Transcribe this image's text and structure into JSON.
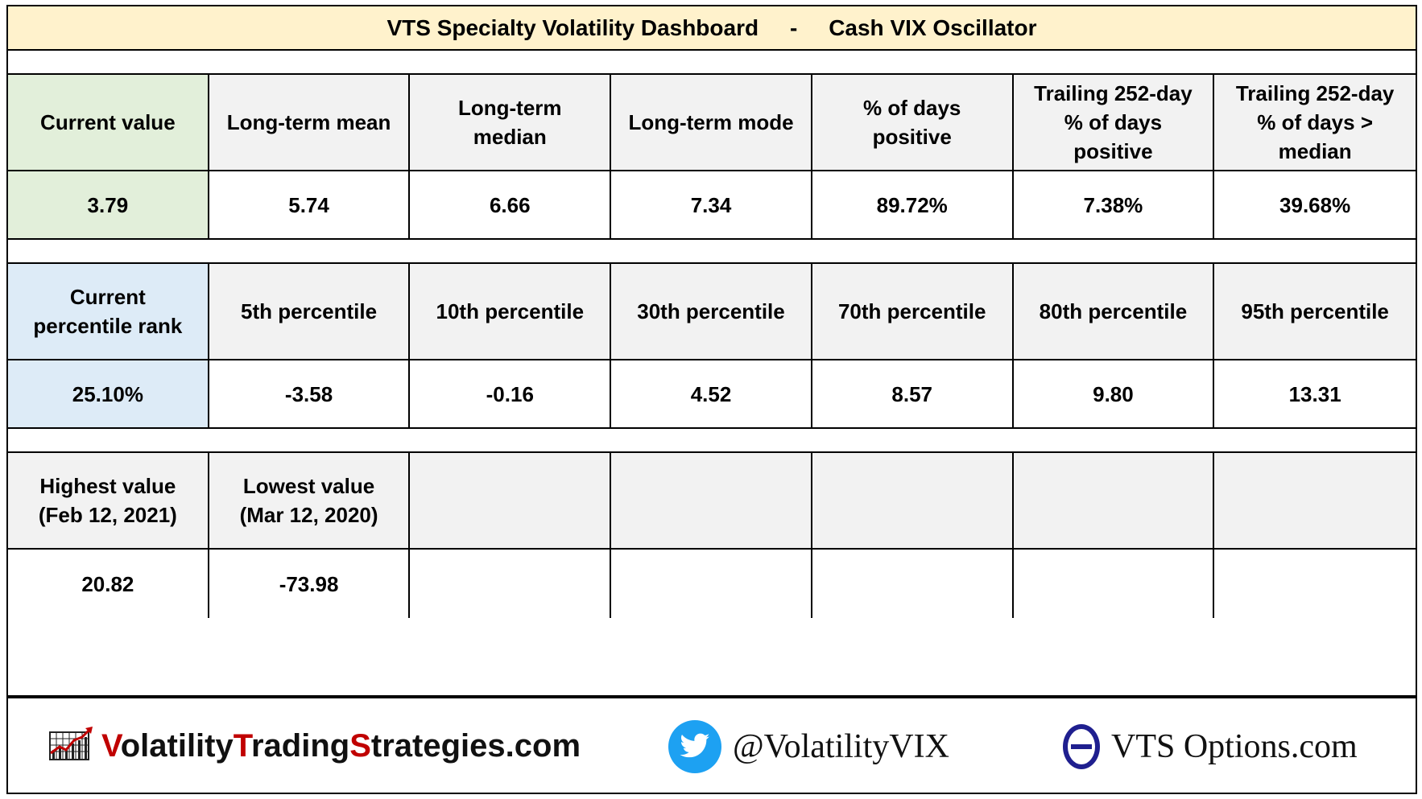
{
  "title": "VTS Specialty Volatility Dashboard     -     Cash VIX Oscillator",
  "section1": {
    "headers": [
      "Current value",
      "Long-term mean",
      "Long-term\nmedian",
      "Long-term mode",
      "% of days\npositive",
      "Trailing 252-day\n% of days\npositive",
      "Trailing 252-day\n% of days >\nmedian"
    ],
    "values": [
      "3.79",
      "5.74",
      "6.66",
      "7.34",
      "89.72%",
      "7.38%",
      "39.68%"
    ]
  },
  "section2": {
    "headers": [
      "Current\npercentile rank",
      "5th percentile",
      "10th percentile",
      "30th percentile",
      "70th percentile",
      "80th percentile",
      "95th percentile"
    ],
    "values": [
      "25.10%",
      "-3.58",
      "-0.16",
      "4.52",
      "8.57",
      "9.80",
      "13.31"
    ]
  },
  "section3": {
    "headers": [
      "Highest value\n(Feb 12, 2021)",
      "Lowest value\n(Mar 12, 2020)",
      "",
      "",
      "",
      "",
      ""
    ],
    "values": [
      "20.82",
      "-73.98",
      "",
      "",
      "",
      "",
      ""
    ]
  },
  "footer": {
    "site_part1": "Volatility",
    "site_part2": "Trading",
    "site_part3": "Strategies",
    "site_part4": ".com",
    "site_letters": [
      "V",
      "olatility",
      "T",
      "rading",
      "S",
      "trategies.com"
    ],
    "twitter_handle": "@VolatilityVIX",
    "options_site": "VTS Options.com",
    "icons": [
      "chart-logo-icon",
      "twitter-bird-icon",
      "theta-icon"
    ]
  },
  "colors": {
    "title_bg": "#fff2cc",
    "current_value_bg": "#e2efda",
    "percentile_rank_bg": "#ddebf7",
    "header_bg": "#f2f2f2",
    "brand_red": "#c00000",
    "twitter_blue": "#1da1f2",
    "theta_navy": "#1f1f8f"
  }
}
